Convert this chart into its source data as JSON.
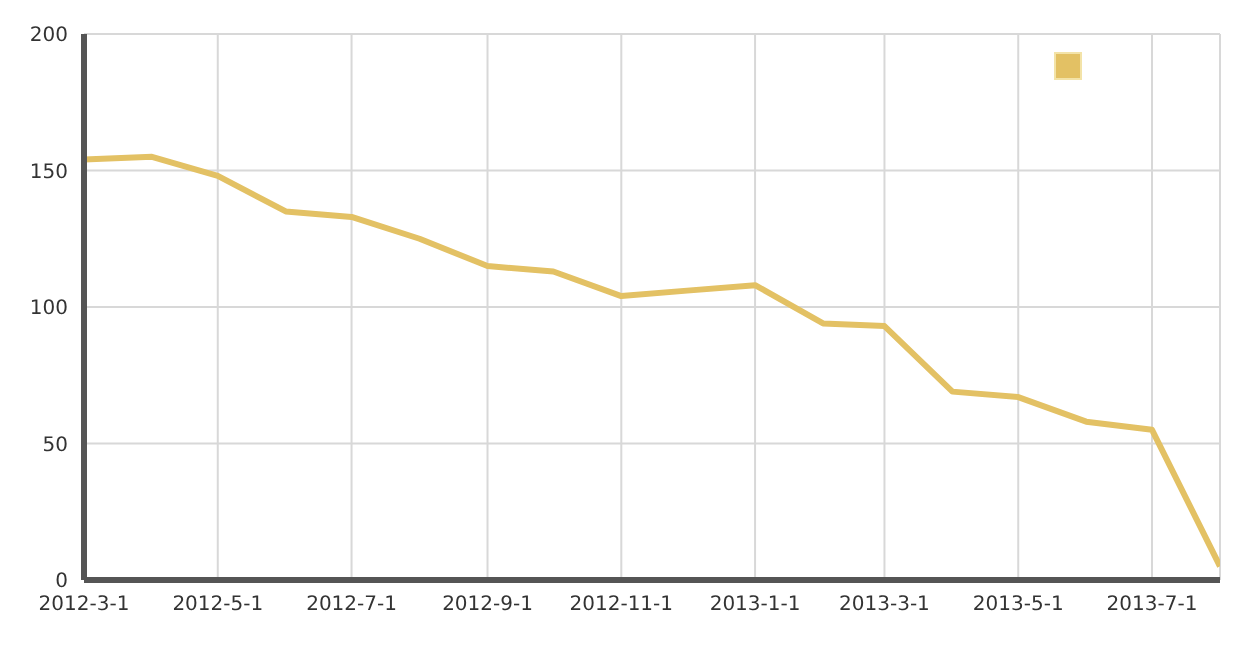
{
  "chart_data": {
    "type": "line",
    "x": [
      "2012-03-01",
      "2012-04-01",
      "2012-05-01",
      "2012-06-01",
      "2012-07-01",
      "2012-08-01",
      "2012-09-01",
      "2012-10-01",
      "2012-11-01",
      "2012-12-01",
      "2013-01-01",
      "2013-02-01",
      "2013-03-01",
      "2013-04-01",
      "2013-05-01",
      "2013-06-01",
      "2013-07-01",
      "2013-08-01"
    ],
    "series": [
      {
        "color": "#e3c164",
        "values": [
          154,
          155,
          148,
          135,
          133,
          125,
          115,
          113,
          104,
          106,
          108,
          94,
          93,
          69,
          67,
          58,
          55,
          5
        ]
      }
    ],
    "xlim": [
      "2012-03-01",
      "2013-08-01"
    ],
    "xticks": [
      {
        "value": "2012-03-01",
        "label": "2012-3-1"
      },
      {
        "value": "2012-05-01",
        "label": "2012-5-1"
      },
      {
        "value": "2012-07-01",
        "label": "2012-7-1"
      },
      {
        "value": "2012-09-01",
        "label": "2012-9-1"
      },
      {
        "value": "2012-11-01",
        "label": "2012-11-1"
      },
      {
        "value": "2013-01-01",
        "label": "2013-1-1"
      },
      {
        "value": "2013-03-01",
        "label": "2013-3-1"
      },
      {
        "value": "2013-05-01",
        "label": "2013-5-1"
      },
      {
        "value": "2013-07-01",
        "label": "2013-7-1"
      }
    ],
    "ylim": [
      0,
      200
    ],
    "yticks": [
      0,
      50,
      100,
      150,
      200
    ],
    "grid": true,
    "marker": "none",
    "line_style": "solid"
  }
}
